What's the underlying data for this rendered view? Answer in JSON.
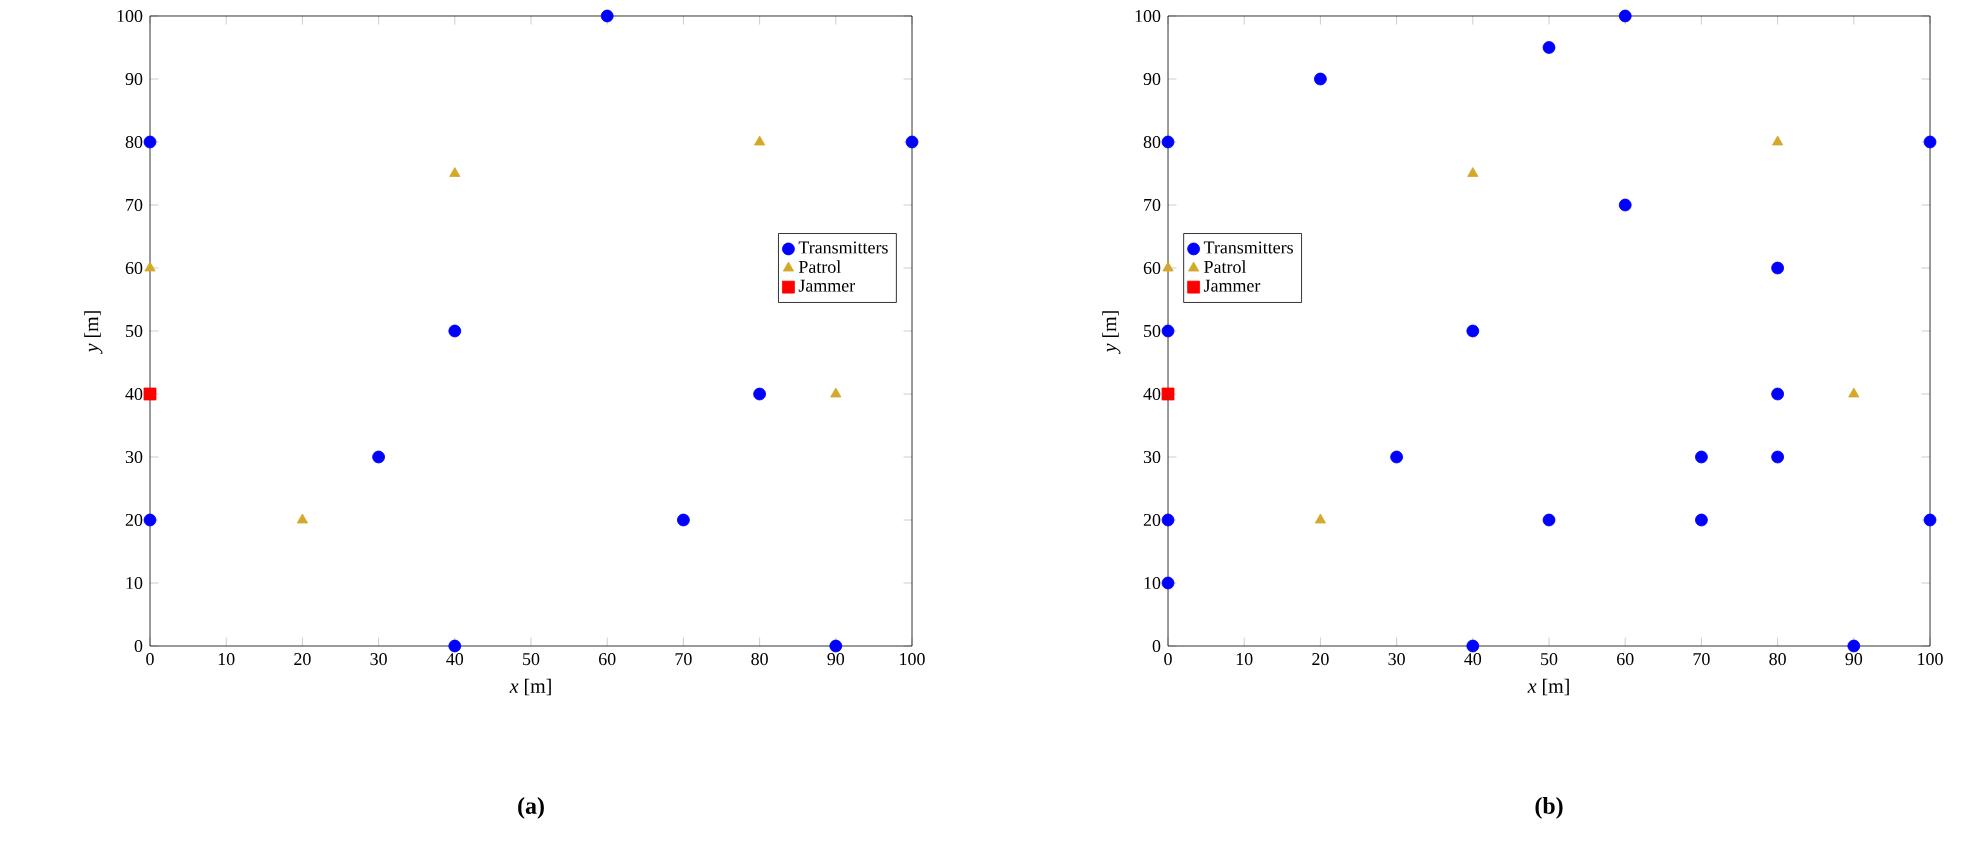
{
  "chart_data": [
    {
      "type": "scatter",
      "title": "(a)",
      "xlabel": "*x* [m]",
      "ylabel": "*y* [m]",
      "xlim": [
        0,
        100
      ],
      "ylim": [
        0,
        100
      ],
      "xticks": [
        0,
        10,
        20,
        30,
        40,
        50,
        60,
        70,
        80,
        90,
        100
      ],
      "yticks": [
        0,
        10,
        20,
        30,
        40,
        50,
        60,
        70,
        80,
        90,
        100
      ],
      "grid": false,
      "legend": "right",
      "series": [
        {
          "name": "Transmitters",
          "color": "#0000ff",
          "marker": "circle",
          "x": [
            0,
            0,
            30,
            40,
            40,
            60,
            70,
            80,
            90,
            100
          ],
          "values": [
            80,
            20,
            30,
            50,
            0,
            100,
            20,
            40,
            0,
            80
          ]
        },
        {
          "name": "Patrol",
          "color": "#d4a82a",
          "marker": "triangle",
          "x": [
            0,
            20,
            40,
            80,
            90
          ],
          "values": [
            60,
            20,
            75,
            80,
            40
          ]
        },
        {
          "name": "Jammer",
          "color": "#ff0000",
          "marker": "square",
          "x": [
            0
          ],
          "values": [
            40
          ]
        }
      ]
    },
    {
      "type": "scatter",
      "title": "(b)",
      "xlabel": "*x* [m]",
      "ylabel": "*y* [m]",
      "xlim": [
        0,
        100
      ],
      "ylim": [
        0,
        100
      ],
      "xticks": [
        0,
        10,
        20,
        30,
        40,
        50,
        60,
        70,
        80,
        90,
        100
      ],
      "yticks": [
        0,
        10,
        20,
        30,
        40,
        50,
        60,
        70,
        80,
        90,
        100
      ],
      "grid": false,
      "legend": "left",
      "series": [
        {
          "name": "Transmitters",
          "color": "#0000ff",
          "marker": "circle",
          "x": [
            0,
            0,
            0,
            0,
            20,
            30,
            40,
            40,
            50,
            50,
            60,
            60,
            70,
            70,
            80,
            80,
            80,
            90,
            100,
            100
          ],
          "values": [
            80,
            50,
            20,
            10,
            90,
            30,
            50,
            0,
            95,
            20,
            100,
            70,
            30,
            20,
            60,
            40,
            30,
            0,
            80,
            20
          ]
        },
        {
          "name": "Patrol",
          "color": "#d4a82a",
          "marker": "triangle",
          "x": [
            0,
            20,
            40,
            80,
            90
          ],
          "values": [
            60,
            20,
            75,
            80,
            40
          ]
        },
        {
          "name": "Jammer",
          "color": "#ff0000",
          "marker": "square",
          "x": [
            0
          ],
          "values": [
            40
          ]
        }
      ]
    }
  ]
}
